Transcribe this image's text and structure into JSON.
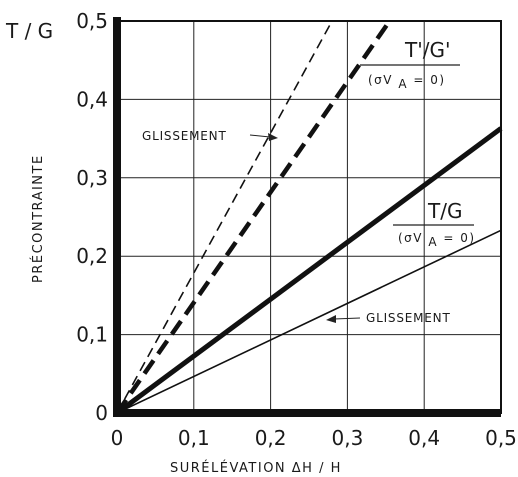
{
  "chart_data": {
    "type": "line",
    "corner_label": "T / G",
    "ylabel": "PRÉCONTRAINTE",
    "xlabel": "SURÉLÉVATION   ΔH / H",
    "xlim": [
      0,
      0.5
    ],
    "ylim": [
      0,
      0.5
    ],
    "grid": true,
    "x_ticks": [
      "0",
      "0,1",
      "0,2",
      "0,3",
      "0,4",
      "0,5"
    ],
    "y_ticks": [
      "0",
      "0,1",
      "0,2",
      "0,3",
      "0,4",
      "0,5"
    ],
    "series": [
      {
        "name": "GLISSEMENT",
        "style": "thin-dashed",
        "points": [
          [
            0,
            0
          ],
          [
            0.28,
            0.5
          ]
        ]
      },
      {
        "name": "T'/G' (σV_A = 0)",
        "style": "thick-dashed",
        "points": [
          [
            0,
            0
          ],
          [
            0.355,
            0.5
          ]
        ]
      },
      {
        "name": "T/G (σV_A = 0)",
        "style": "thick-solid",
        "points": [
          [
            0,
            0
          ],
          [
            0.5,
            0.363
          ]
        ]
      },
      {
        "name": "GLISSEMENT",
        "style": "thin-solid",
        "points": [
          [
            0,
            0
          ],
          [
            0.5,
            0.233
          ]
        ]
      }
    ],
    "annotations": {
      "glissement_upper": "GLISSEMENT",
      "glissement_lower": "GLISSEMENT",
      "tg_prime_main": "T'/G'",
      "tg_prime_sub": "(σV",
      "tg_prime_sub_index": "A",
      "tg_prime_sub_tail": "= 0)",
      "tg_main": "T/G",
      "tg_sub": "(σV",
      "tg_sub_index": "A",
      "tg_sub_tail": "= 0)"
    }
  }
}
